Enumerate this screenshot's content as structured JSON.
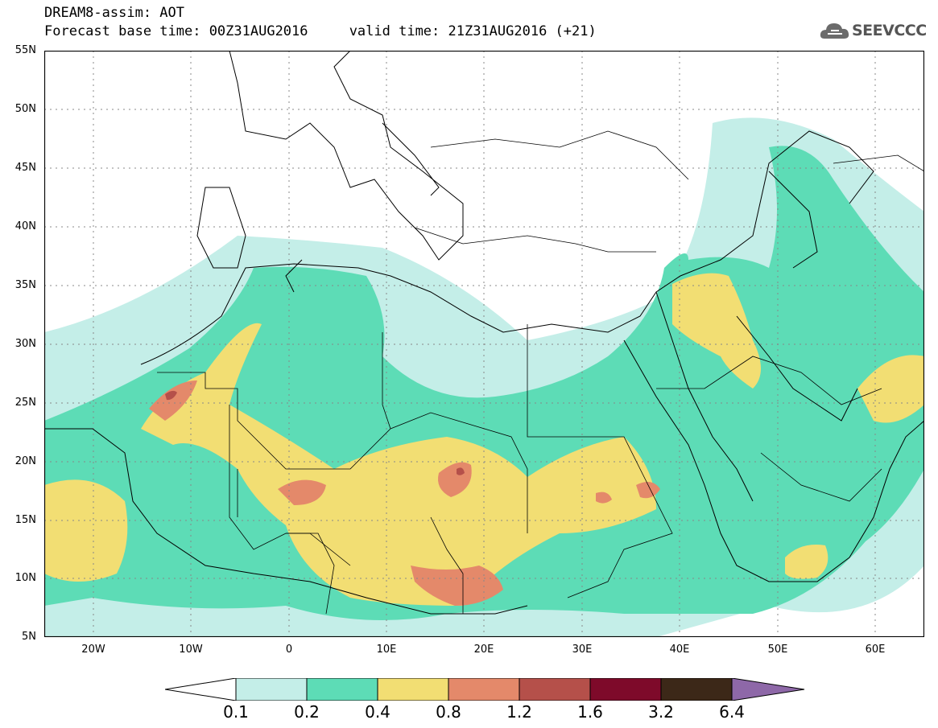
{
  "header": {
    "title_line1": "DREAM8-assim: AOT",
    "title_line2": "Forecast base time: 00Z31AUG2016     valid time: 21Z31AUG2016 (+21)",
    "logo_text": "SEEVCCC"
  },
  "map": {
    "lat_ticks": [
      "55N",
      "50N",
      "45N",
      "40N",
      "35N",
      "30N",
      "25N",
      "20N",
      "15N",
      "10N",
      "5N"
    ],
    "lon_ticks": [
      "20W",
      "10W",
      "0",
      "10E",
      "20E",
      "30E",
      "40E",
      "50E",
      "60E"
    ],
    "colors": {
      "c01": "#c4eee8",
      "c02": "#5ddcb6",
      "c04": "#f2de73",
      "c08": "#e4896a",
      "c12": "#b5504a",
      "c16": "#7e0a2a",
      "c32": "#3c2818",
      "c64": "#8e68a8"
    }
  },
  "colorbar": {
    "labels": [
      "0.1",
      "0.2",
      "0.4",
      "0.8",
      "1.2",
      "1.6",
      "3.2",
      "6.4"
    ]
  }
}
